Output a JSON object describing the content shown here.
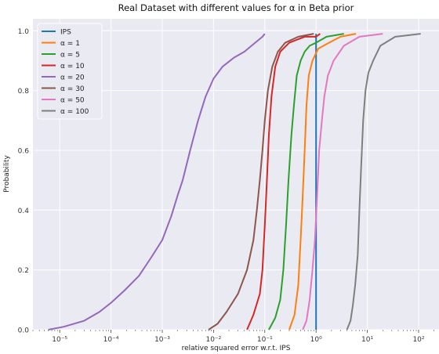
{
  "chart_data": {
    "type": "line",
    "title": "Real Dataset with different values for α in Beta prior",
    "xlabel": "relative squared error w.r.t. IPS",
    "ylabel": "Probability",
    "xscale": "log",
    "xlim": [
      3e-06,
      250
    ],
    "ylim": [
      0,
      1.04
    ],
    "grid": true,
    "background": "#eaeaf2",
    "legend_position": "top-left",
    "x_ticks": [
      {
        "value": 1e-05,
        "label": "10⁻⁵"
      },
      {
        "value": 0.0001,
        "label": "10⁻⁴"
      },
      {
        "value": 0.001,
        "label": "10⁻³"
      },
      {
        "value": 0.01,
        "label": "10⁻²"
      },
      {
        "value": 0.1,
        "label": "10⁻¹"
      },
      {
        "value": 1,
        "label": "10⁰"
      },
      {
        "value": 10,
        "label": "10¹"
      },
      {
        "value": 100,
        "label": "10²"
      }
    ],
    "y_ticks": [
      {
        "value": 0,
        "label": "0.0"
      },
      {
        "value": 0.2,
        "label": "0.2"
      },
      {
        "value": 0.4,
        "label": "0.4"
      },
      {
        "value": 0.6,
        "label": "0.6"
      },
      {
        "value": 0.8,
        "label": "0.8"
      },
      {
        "value": 1.0,
        "label": "1.0"
      }
    ],
    "series": [
      {
        "name": "IPS",
        "color": "#1f77b4",
        "points": [
          [
            1,
            0
          ],
          [
            1,
            0.99
          ]
        ]
      },
      {
        "name": "α = 1",
        "color": "#ff7f0e",
        "points": [
          [
            0.3,
            0
          ],
          [
            0.38,
            0.05
          ],
          [
            0.45,
            0.15
          ],
          [
            0.5,
            0.3
          ],
          [
            0.55,
            0.45
          ],
          [
            0.6,
            0.6
          ],
          [
            0.65,
            0.75
          ],
          [
            0.72,
            0.85
          ],
          [
            0.85,
            0.9
          ],
          [
            1.1,
            0.94
          ],
          [
            1.8,
            0.96
          ],
          [
            3,
            0.98
          ],
          [
            6,
            0.99
          ]
        ]
      },
      {
        "name": "α = 5",
        "color": "#2ca02c",
        "points": [
          [
            0.12,
            0
          ],
          [
            0.16,
            0.04
          ],
          [
            0.2,
            0.1
          ],
          [
            0.23,
            0.2
          ],
          [
            0.26,
            0.35
          ],
          [
            0.29,
            0.5
          ],
          [
            0.33,
            0.65
          ],
          [
            0.37,
            0.75
          ],
          [
            0.42,
            0.85
          ],
          [
            0.5,
            0.9
          ],
          [
            0.6,
            0.93
          ],
          [
            0.75,
            0.95
          ],
          [
            1.0,
            0.96
          ],
          [
            1.6,
            0.98
          ],
          [
            3.5,
            0.99
          ]
        ]
      },
      {
        "name": "α = 10",
        "color": "#d62728",
        "points": [
          [
            0.045,
            0
          ],
          [
            0.06,
            0.05
          ],
          [
            0.08,
            0.12
          ],
          [
            0.09,
            0.2
          ],
          [
            0.1,
            0.35
          ],
          [
            0.11,
            0.5
          ],
          [
            0.12,
            0.65
          ],
          [
            0.135,
            0.78
          ],
          [
            0.16,
            0.88
          ],
          [
            0.2,
            0.93
          ],
          [
            0.3,
            0.96
          ],
          [
            0.6,
            0.98
          ],
          [
            1.0,
            0.98
          ],
          [
            1.2,
            0.99
          ]
        ]
      },
      {
        "name": "α = 20",
        "color": "#9467bd",
        "points": [
          [
            6e-06,
            0
          ],
          [
            1.2e-05,
            0.01
          ],
          [
            3e-05,
            0.03
          ],
          [
            6e-05,
            0.06
          ],
          [
            0.0001,
            0.09
          ],
          [
            0.00018,
            0.13
          ],
          [
            0.00035,
            0.18
          ],
          [
            0.0006,
            0.24
          ],
          [
            0.001,
            0.3
          ],
          [
            0.0015,
            0.38
          ],
          [
            0.002,
            0.45
          ],
          [
            0.0025,
            0.5
          ],
          [
            0.0035,
            0.6
          ],
          [
            0.005,
            0.7
          ],
          [
            0.007,
            0.78
          ],
          [
            0.01,
            0.84
          ],
          [
            0.015,
            0.88
          ],
          [
            0.025,
            0.91
          ],
          [
            0.04,
            0.93
          ],
          [
            0.065,
            0.96
          ],
          [
            0.09,
            0.98
          ],
          [
            0.1,
            0.99
          ]
        ]
      },
      {
        "name": "α = 30",
        "color": "#8c564b",
        "points": [
          [
            0.008,
            0
          ],
          [
            0.012,
            0.02
          ],
          [
            0.018,
            0.06
          ],
          [
            0.03,
            0.12
          ],
          [
            0.045,
            0.2
          ],
          [
            0.06,
            0.3
          ],
          [
            0.07,
            0.4
          ],
          [
            0.08,
            0.5
          ],
          [
            0.09,
            0.6
          ],
          [
            0.1,
            0.7
          ],
          [
            0.115,
            0.8
          ],
          [
            0.14,
            0.88
          ],
          [
            0.18,
            0.93
          ],
          [
            0.25,
            0.96
          ],
          [
            0.45,
            0.98
          ],
          [
            0.9,
            0.99
          ]
        ]
      },
      {
        "name": "α = 50",
        "color": "#e377c2",
        "points": [
          [
            0.55,
            0
          ],
          [
            0.65,
            0.03
          ],
          [
            0.75,
            0.1
          ],
          [
            0.85,
            0.2
          ],
          [
            0.95,
            0.3
          ],
          [
            1.05,
            0.45
          ],
          [
            1.15,
            0.6
          ],
          [
            1.3,
            0.7
          ],
          [
            1.45,
            0.78
          ],
          [
            1.7,
            0.85
          ],
          [
            2.2,
            0.9
          ],
          [
            3.5,
            0.95
          ],
          [
            7,
            0.98
          ],
          [
            20,
            0.99
          ]
        ]
      },
      {
        "name": "α = 100",
        "color": "#7f7f7f",
        "points": [
          [
            4,
            0
          ],
          [
            4.7,
            0.03
          ],
          [
            5.2,
            0.08
          ],
          [
            5.8,
            0.15
          ],
          [
            6.5,
            0.25
          ],
          [
            7,
            0.4
          ],
          [
            7.6,
            0.55
          ],
          [
            8.3,
            0.7
          ],
          [
            9.2,
            0.8
          ],
          [
            10.5,
            0.86
          ],
          [
            13,
            0.9
          ],
          [
            18,
            0.95
          ],
          [
            35,
            0.98
          ],
          [
            110,
            0.99
          ]
        ]
      }
    ]
  }
}
